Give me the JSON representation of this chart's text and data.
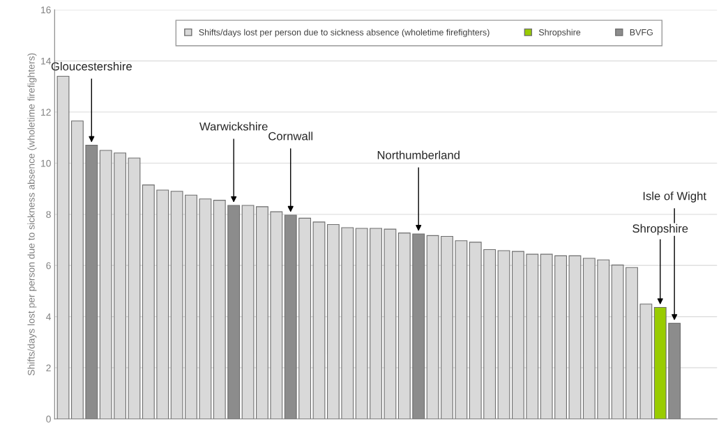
{
  "chart_data": {
    "type": "bar",
    "ylabel": "Shifts/days lost per person due to sickness absence (wholetime firefighters)",
    "categories": [
      null,
      null,
      null,
      null,
      null,
      null,
      null,
      null,
      null,
      null,
      null,
      null,
      null,
      null,
      null,
      null,
      null,
      null,
      null,
      null,
      null,
      null,
      null,
      null,
      null,
      null,
      null,
      null,
      null,
      null,
      null,
      null,
      null,
      null,
      null,
      null,
      null,
      null,
      null,
      null,
      null,
      null,
      null,
      null
    ],
    "series": [
      {
        "name": "Shifts/days lost per person due to sickness absence (wholetime firefighters)",
        "color": "#d9d9d9",
        "values": [
          13.4,
          11.65,
          null,
          10.5,
          10.4,
          10.2,
          9.15,
          8.95,
          8.9,
          8.75,
          8.6,
          8.55,
          null,
          8.35,
          8.3,
          8.1,
          null,
          7.85,
          7.7,
          7.6,
          7.48,
          7.45,
          7.45,
          7.42,
          7.27,
          null,
          7.17,
          7.14,
          6.97,
          6.91,
          6.62,
          6.58,
          6.55,
          6.44,
          6.44,
          6.38,
          6.38,
          6.28,
          6.22,
          6.02,
          5.92,
          4.49,
          null,
          null
        ]
      },
      {
        "name": "Shropshire",
        "color": "#99cc00",
        "values": [
          null,
          null,
          null,
          null,
          null,
          null,
          null,
          null,
          null,
          null,
          null,
          null,
          null,
          null,
          null,
          null,
          null,
          null,
          null,
          null,
          null,
          null,
          null,
          null,
          null,
          null,
          null,
          null,
          null,
          null,
          null,
          null,
          null,
          null,
          null,
          null,
          null,
          null,
          null,
          null,
          null,
          null,
          4.36,
          null
        ]
      },
      {
        "name": "BVFG",
        "color": "#8c8c8c",
        "values": [
          null,
          null,
          10.7,
          null,
          null,
          null,
          null,
          null,
          null,
          null,
          null,
          null,
          8.35,
          null,
          null,
          null,
          7.97,
          null,
          null,
          null,
          null,
          null,
          null,
          null,
          null,
          7.23,
          null,
          null,
          null,
          null,
          null,
          null,
          null,
          null,
          null,
          null,
          null,
          null,
          null,
          null,
          null,
          null,
          null,
          3.74
        ]
      }
    ],
    "ylim": [
      0,
      16
    ],
    "yticks": [
      0,
      2,
      4,
      6,
      8,
      10,
      12,
      14,
      16
    ],
    "stacked": true,
    "grid": "y",
    "legend": "top",
    "tick_labels": "y",
    "annotations": [
      {
        "text": "Gloucestershire",
        "y": 10.7
      },
      {
        "text": "Warwickshire",
        "y": 8.35
      },
      {
        "text": "Cornwall",
        "y": 7.97
      },
      {
        "text": "Northumberland",
        "y": 7.23
      },
      {
        "text": "Shropshire",
        "y": 4.36
      },
      {
        "text": "Isle of Wight",
        "y": 3.74
      }
    ]
  }
}
